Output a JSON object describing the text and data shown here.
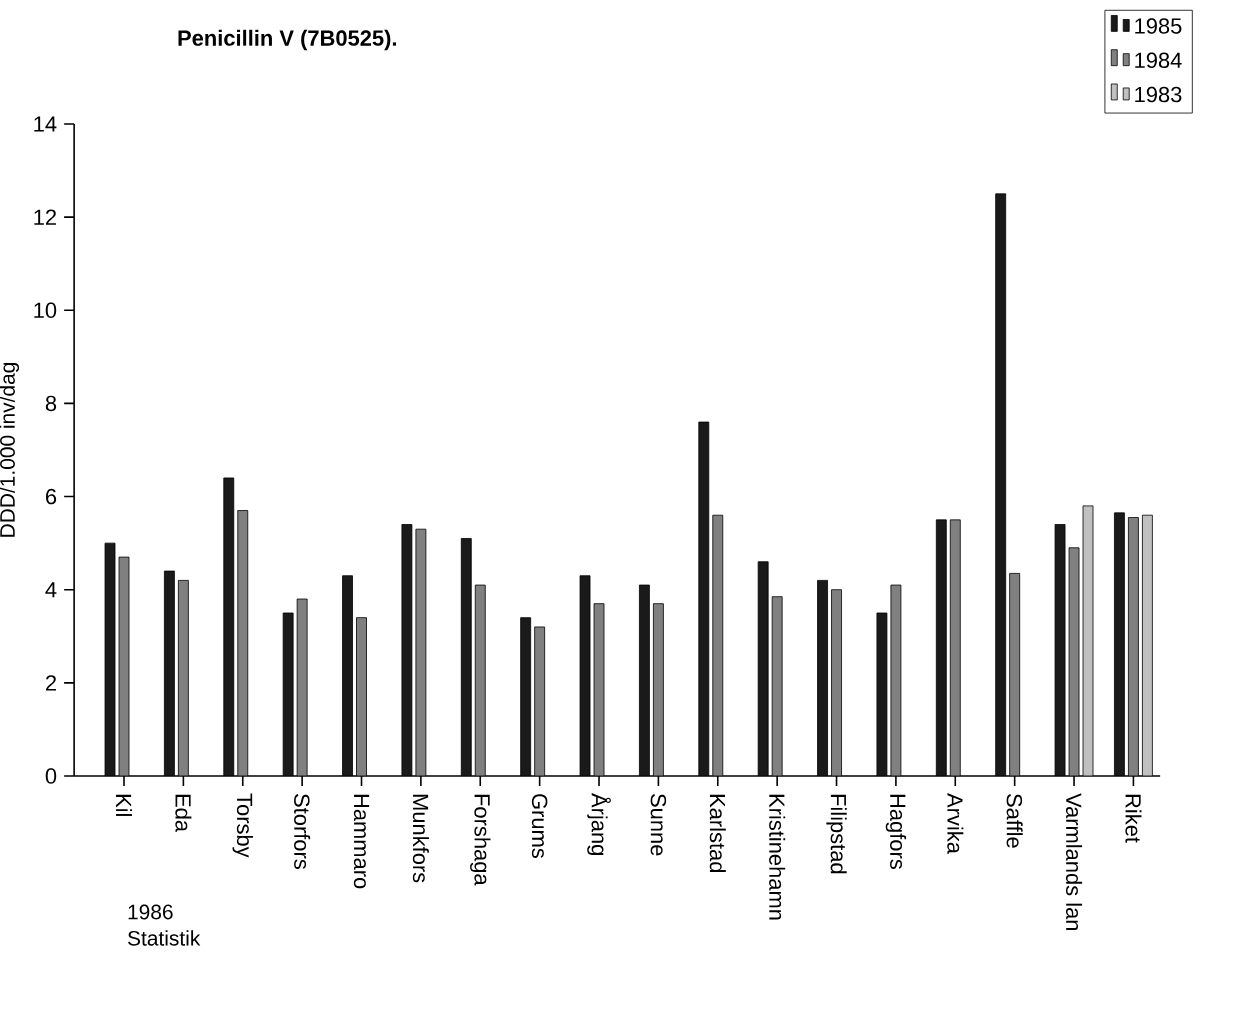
{
  "chart_data": {
    "type": "bar",
    "title": "Penicillin V (7B0525).",
    "ylabel": "DDD/1.000 inv/dag",
    "categories": [
      "Kil",
      "Eda",
      "Torsby",
      "Storfors",
      "Hammaro",
      "Munkfors",
      "Forshaga",
      "Grums",
      "Årjang",
      "Sunne",
      "Karlstad",
      "Kristinehamn",
      "Filipstad",
      "Hagfors",
      "Arvika",
      "Saffle",
      "Varmlands lan",
      "Riket"
    ],
    "series": [
      {
        "name": "1985",
        "color": "#1a1a1a",
        "values": [
          5.0,
          4.4,
          6.4,
          3.5,
          4.3,
          5.4,
          5.1,
          3.4,
          4.3,
          4.1,
          7.6,
          4.6,
          4.2,
          3.5,
          5.5,
          12.5,
          5.4,
          5.65
        ]
      },
      {
        "name": "1984",
        "color": "#808080",
        "values": [
          4.7,
          4.2,
          5.7,
          3.8,
          3.4,
          5.3,
          4.1,
          3.2,
          3.7,
          3.7,
          5.6,
          3.85,
          4.0,
          4.1,
          5.5,
          4.35,
          4.9,
          5.55
        ]
      },
      {
        "name": "1983",
        "color": "#c0c0c0",
        "values": [
          null,
          null,
          null,
          null,
          null,
          null,
          null,
          null,
          null,
          null,
          null,
          null,
          null,
          null,
          null,
          null,
          5.8,
          5.6
        ]
      }
    ],
    "ylim": [
      0,
      14
    ],
    "yticks": [
      0,
      2,
      4,
      6,
      8,
      10,
      12,
      14
    ],
    "legend": "top right",
    "annotations": [
      "1986",
      "Statistik"
    ]
  }
}
